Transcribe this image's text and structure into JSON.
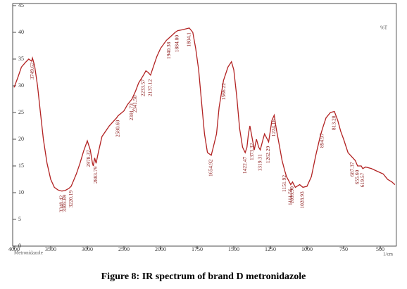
{
  "chart_data": {
    "type": "line",
    "caption": "Figure 8: IR spectrum of brand D metronidazole",
    "y_label": "%T",
    "x_label": "1/cm",
    "sample": "Metronidazole",
    "color": "#b22222",
    "xlim": [
      4000,
      400
    ],
    "xticks": [
      4000,
      3500,
      3000,
      2500,
      2000,
      1750,
      1500,
      1250,
      1000,
      750,
      500
    ],
    "ylim": [
      0,
      45
    ],
    "yticks": [
      0,
      5,
      10,
      15,
      20,
      25,
      30,
      35,
      40,
      45
    ],
    "x": [
      4000,
      3950,
      3900,
      3850,
      3800,
      3760,
      3749,
      3720,
      3680,
      3640,
      3600,
      3550,
      3500,
      3450,
      3400,
      3348,
      3305,
      3250,
      3220,
      3150,
      3100,
      3050,
      3000,
      2960,
      2930,
      2918,
      2900,
      2880,
      2850,
      2800,
      2700,
      2600,
      2580,
      2500,
      2450,
      2391,
      2341,
      2300,
      2233,
      2200,
      2170,
      2137,
      2100,
      2050,
      2000,
      1960,
      1940,
      1900,
      1884,
      1850,
      1804,
      1780,
      1760,
      1740,
      1720,
      1700,
      1680,
      1654,
      1640,
      1618,
      1600,
      1570,
      1540,
      1516,
      1500,
      1480,
      1460,
      1440,
      1422,
      1410,
      1400,
      1390,
      1373,
      1360,
      1345,
      1330,
      1319,
      1300,
      1290,
      1262,
      1240,
      1224,
      1210,
      1190,
      1170,
      1151,
      1140,
      1111,
      1099,
      1080,
      1050,
      1028,
      1000,
      970,
      940,
      910,
      894,
      870,
      840,
      813,
      790,
      770,
      750,
      720,
      687,
      670,
      655,
      630,
      619,
      600,
      560,
      520,
      480,
      450,
      420,
      400
    ],
    "values": [
      29.7,
      31.5,
      33.5,
      34.3,
      35.0,
      34.6,
      35.2,
      33.8,
      30.0,
      25.0,
      20.0,
      15.5,
      12.5,
      11.0,
      10.5,
      10.3,
      10.4,
      10.8,
      11.2,
      13.5,
      15.5,
      17.8,
      19.7,
      18.0,
      15.5,
      15.0,
      16.5,
      15.5,
      17.5,
      20.5,
      22.5,
      24.0,
      24.4,
      25.3,
      26.5,
      27.5,
      29.0,
      30.5,
      32.0,
      32.8,
      32.5,
      32.0,
      33.5,
      35.5,
      37.0,
      38.5,
      39.0,
      40.0,
      40.3,
      40.5,
      40.8,
      40.0,
      37.0,
      33.0,
      27.0,
      21.0,
      17.5,
      17.0,
      18.5,
      21.0,
      26.0,
      31.0,
      33.5,
      34.5,
      33.0,
      28.0,
      22.0,
      18.5,
      17.5,
      18.5,
      21.0,
      22.5,
      20.0,
      18.0,
      20.0,
      18.5,
      18.0,
      20.0,
      21.0,
      19.5,
      23.5,
      24.5,
      22.0,
      19.0,
      16.0,
      14.0,
      13.0,
      11.5,
      12.0,
      11.0,
      11.5,
      11.0,
      11.2,
      13.0,
      17.0,
      20.5,
      22.0,
      24.0,
      25.0,
      25.2,
      23.5,
      21.5,
      20.0,
      17.5,
      16.5,
      16.0,
      15.0,
      15.0,
      14.5,
      14.8,
      14.5,
      14.0,
      13.5,
      12.5,
      12.0,
      11.5
    ],
    "peaks": [
      3749.62,
      3348.42,
      3305.69,
      3220.19,
      2978.37,
      2883.79,
      {
        "value": 2580.6,
        "label": "2580.60"
      },
      2391.73,
      {
        "value": 2341.5,
        "label": "2341.50"
      },
      2233.57,
      2137.12,
      1940.38,
      {
        "value": 1884.8,
        "label": "1884.80"
      },
      1804.1,
      1654.92,
      1566.22,
      1422.47,
      1373.32,
      1319.31,
      1262.29,
      1224.16,
      1151.92,
      1111.56,
      {
        "value": 1099.9,
        "label": "1099.90"
      },
      1028.93,
      894.97,
      813.28,
      687.37,
      {
        "value": 655.6,
        "label": "655.60"
      },
      619.57
    ]
  }
}
